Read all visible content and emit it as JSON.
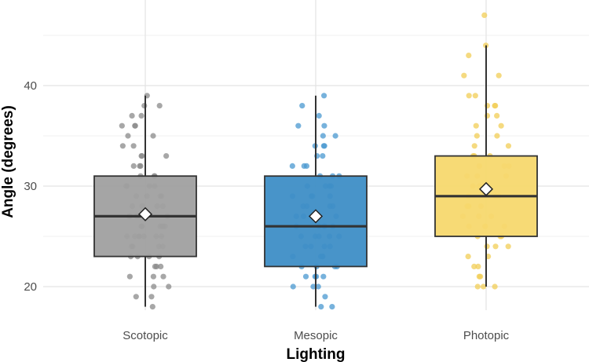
{
  "chart_data": {
    "type": "box",
    "xlabel": "Lighting",
    "ylabel": "Angle (degrees)",
    "ylim": [
      16.5,
      48
    ],
    "yticks": [
      20,
      30,
      40
    ],
    "grid": true,
    "legend": "none",
    "categories": [
      "Scotopic",
      "Mesopic",
      "Photopic"
    ],
    "colors": [
      "#a0a0a0",
      "#3e8ec6",
      "#f7d86e"
    ],
    "point_colors": [
      "#8a8a8a",
      "#4a98d0",
      "#f2cd55"
    ],
    "boxes": [
      {
        "category": "Scotopic",
        "whisker_low": 18,
        "q1": 23,
        "median": 27,
        "q3": 31,
        "whisker_high": 39,
        "mean": 27.2
      },
      {
        "category": "Mesopic",
        "whisker_low": 18,
        "q1": 22,
        "median": 26,
        "q3": 31,
        "whisker_high": 39,
        "mean": 27.0
      },
      {
        "category": "Photopic",
        "whisker_low": 20,
        "q1": 25,
        "median": 29,
        "q3": 33,
        "whisker_high": 44,
        "mean": 29.7
      }
    ],
    "points": [
      {
        "category": "Scotopic",
        "values": [
          18,
          19,
          19,
          20,
          20,
          21,
          21,
          21,
          22,
          22,
          22,
          23,
          23,
          23,
          23,
          24,
          24,
          24,
          24,
          25,
          25,
          25,
          25,
          25,
          25,
          25,
          26,
          26,
          26,
          26,
          26,
          27,
          27,
          27,
          27,
          27,
          27,
          27,
          28,
          28,
          28,
          28,
          29,
          29,
          29,
          29,
          30,
          30,
          30,
          30,
          31,
          31,
          31,
          32,
          32,
          32,
          33,
          33,
          33,
          34,
          34,
          35,
          35,
          36,
          36,
          36,
          37,
          37,
          38,
          38,
          39
        ]
      },
      {
        "category": "Mesopic",
        "values": [
          18,
          18,
          19,
          20,
          20,
          20,
          21,
          21,
          21,
          21,
          22,
          22,
          22,
          22,
          23,
          23,
          23,
          23,
          24,
          24,
          24,
          24,
          25,
          25,
          25,
          25,
          25,
          26,
          26,
          26,
          26,
          26,
          27,
          27,
          27,
          27,
          28,
          28,
          28,
          28,
          29,
          29,
          29,
          29,
          30,
          30,
          30,
          30,
          31,
          31,
          31,
          32,
          32,
          32,
          33,
          33,
          34,
          34,
          34,
          35,
          35,
          36,
          36,
          37,
          38,
          39
        ]
      },
      {
        "category": "Photopic",
        "values": [
          20,
          20,
          20,
          21,
          21,
          22,
          22,
          23,
          23,
          24,
          24,
          24,
          25,
          25,
          25,
          26,
          26,
          26,
          26,
          27,
          27,
          27,
          28,
          28,
          28,
          28,
          29,
          29,
          29,
          29,
          30,
          30,
          30,
          31,
          31,
          31,
          32,
          32,
          32,
          33,
          33,
          33,
          34,
          34,
          35,
          35,
          36,
          36,
          37,
          37,
          38,
          38,
          38,
          39,
          39,
          41,
          41,
          43,
          44,
          47
        ]
      }
    ]
  }
}
